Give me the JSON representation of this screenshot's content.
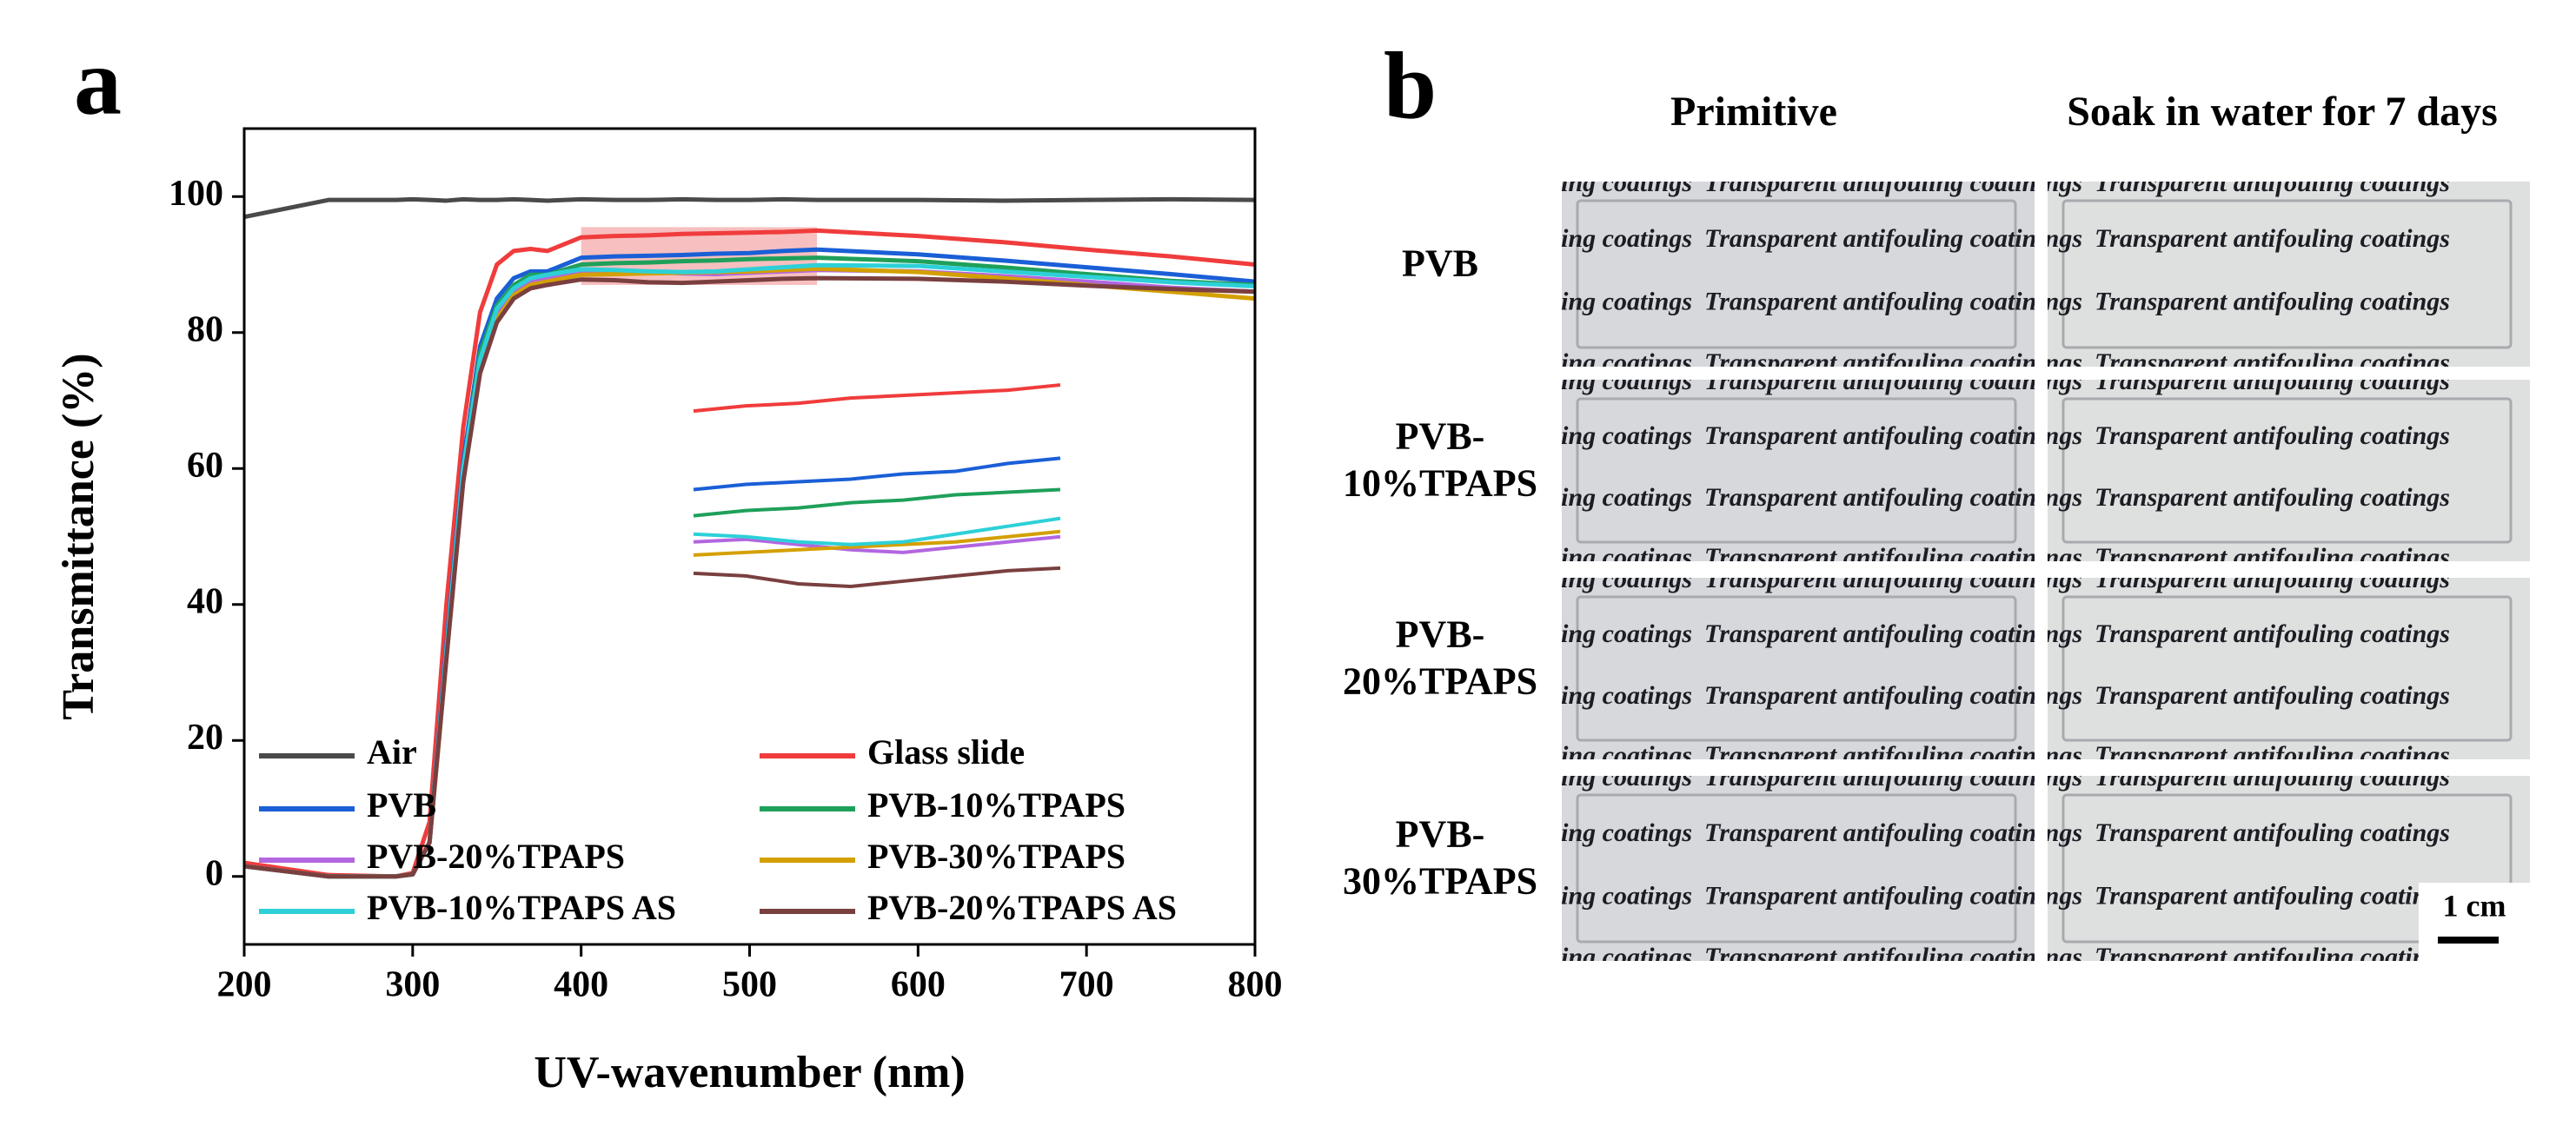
{
  "panel_label_a": "a",
  "chart_data": {
    "type": "line",
    "xlabel": "UV-wavenumber (nm)",
    "ylabel": "Transmittance (%)",
    "x": [
      200,
      250,
      290,
      300,
      310,
      320,
      330,
      340,
      350,
      360,
      370,
      380,
      400,
      420,
      440,
      460,
      480,
      500,
      520,
      540,
      600,
      650,
      700,
      750,
      800
    ],
    "xlim": [
      200,
      800
    ],
    "xticks": [
      200,
      300,
      400,
      500,
      600,
      700,
      800
    ],
    "ylim": [
      -10,
      110
    ],
    "yticks": [
      0,
      20,
      40,
      60,
      80,
      100
    ],
    "legend_loc": "lower center",
    "legend_columns": 2,
    "highlight": {
      "xlim": [
        400,
        540
      ],
      "ylim": [
        87,
        95.5
      ],
      "color": "#f08a8a"
    },
    "inset": {
      "xlim": [
        400,
        540
      ],
      "ylim": [
        87,
        95.5
      ]
    },
    "series": [
      {
        "name": "Air",
        "color": "#4a4a4a",
        "values": [
          97,
          99.5,
          99.5,
          99.6,
          99.5,
          99.4,
          99.6,
          99.5,
          99.5,
          99.6,
          99.5,
          99.4,
          99.6,
          99.5,
          99.5,
          99.6,
          99.5,
          99.5,
          99.6,
          99.5,
          99.5,
          99.4,
          99.5,
          99.6,
          99.5
        ],
        "inset": false
      },
      {
        "name": "Glass slide",
        "color": "#f03c3c",
        "values": [
          2,
          0.2,
          0,
          0.5,
          8,
          40,
          66,
          83,
          90,
          92,
          92.3,
          92,
          94,
          94.2,
          94.3,
          94.5,
          94.6,
          94.7,
          94.8,
          95,
          94.2,
          93.3,
          92.2,
          91.2,
          90
        ]
      },
      {
        "name": "PVB",
        "color": "#1a5fd6",
        "values": [
          1.5,
          0,
          0,
          0.3,
          5,
          34,
          61,
          78,
          85,
          88,
          89,
          89,
          91,
          91.2,
          91.3,
          91.4,
          91.6,
          91.7,
          92,
          92.2,
          91.5,
          90.6,
          89.6,
          88.6,
          87.5
        ]
      },
      {
        "name": "PVB-10%TPAPS",
        "color": "#1fa05a",
        "values": [
          1.5,
          0,
          0,
          0.3,
          5,
          33,
          60,
          77,
          84,
          87,
          88.5,
          88.5,
          90,
          90.2,
          90.3,
          90.5,
          90.6,
          90.8,
          90.9,
          91,
          90.5,
          89.6,
          88.6,
          87.6,
          87
        ]
      },
      {
        "name": "PVB-20%TPAPS",
        "color": "#b266e0",
        "values": [
          1.5,
          0,
          0,
          0.3,
          5,
          33,
          60,
          76,
          83,
          86,
          87.5,
          88,
          89,
          89.1,
          88.9,
          88.7,
          88.6,
          88.8,
          89,
          89.2,
          89,
          88.3,
          87.5,
          86.6,
          86
        ]
      },
      {
        "name": "PVB-30%TPAPS",
        "color": "#d4a000",
        "values": [
          1.5,
          0,
          0,
          0.3,
          5,
          32,
          59,
          75,
          82,
          85.5,
          87,
          87.5,
          88.5,
          88.6,
          88.7,
          88.8,
          88.9,
          89,
          89.2,
          89.4,
          88.9,
          88,
          87,
          86,
          85
        ]
      },
      {
        "name": "PVB-10%TPAPS AS",
        "color": "#2ed0d8",
        "values": [
          1.5,
          0,
          0,
          0.3,
          5,
          33,
          60,
          76,
          83.5,
          86.5,
          88,
          88.5,
          89.3,
          89.2,
          89,
          88.9,
          89,
          89.3,
          89.6,
          89.9,
          89.8,
          89,
          88.2,
          87.4,
          86.8
        ]
      },
      {
        "name": "PVB-20%TPAPS AS",
        "color": "#7a3f3f",
        "values": [
          1.5,
          0,
          0,
          0.3,
          5,
          32,
          58,
          74,
          81.5,
          85,
          86.5,
          87,
          87.8,
          87.7,
          87.4,
          87.3,
          87.5,
          87.7,
          87.9,
          88,
          87.9,
          87.5,
          86.9,
          86.4,
          86
        ]
      }
    ]
  },
  "panel_b": {
    "label": "b",
    "columns": [
      "Primitive",
      "Soak in water for 7 days"
    ],
    "rows": [
      [
        "PVB"
      ],
      [
        "PVB-",
        "10%TPAPS"
      ],
      [
        "PVB-",
        "20%TPAPS"
      ],
      [
        "PVB-",
        "30%TPAPS"
      ]
    ],
    "photo_text": "Transparent antifouling coatings",
    "scale_bar": "1 cm"
  }
}
